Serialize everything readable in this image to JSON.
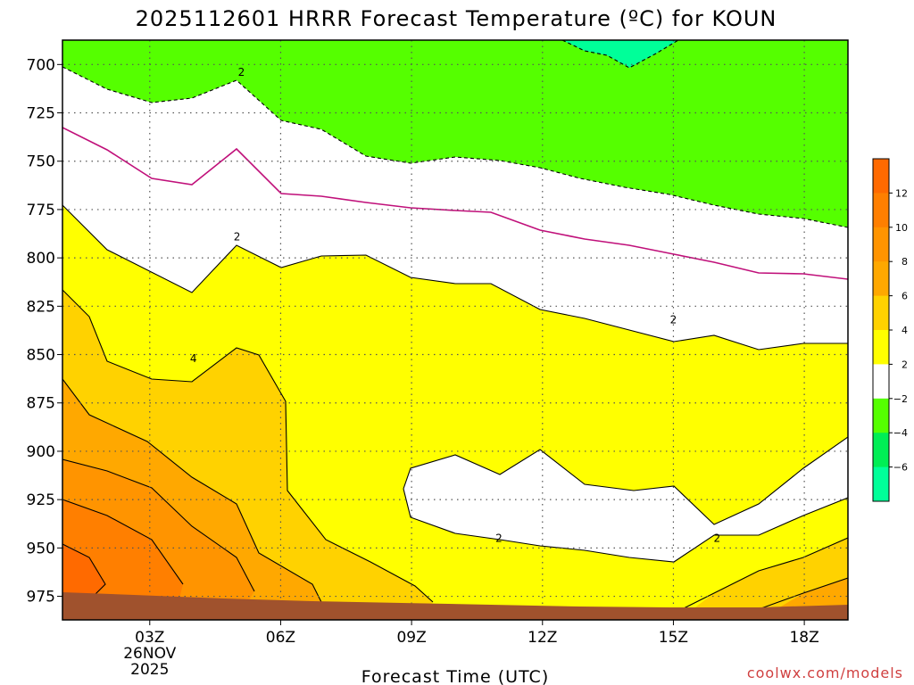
{
  "chart_data": {
    "type": "heatmap",
    "title": "2025112601 HRRR Forecast Temperature (ºC) for KOUN",
    "xlabel": "Forecast Time (UTC)",
    "ylabel": "",
    "y_axis": {
      "units": "hPa",
      "ticks": [
        700,
        725,
        750,
        775,
        800,
        825,
        850,
        875,
        900,
        925,
        950,
        975
      ],
      "ylim": [
        987,
        687
      ],
      "inverted": true
    },
    "x_axis": {
      "units": "hours UTC",
      "xlim": [
        1,
        19
      ],
      "ticks": [
        {
          "x": 3,
          "label": "03Z",
          "sublabel": [
            "26NOV",
            "2025"
          ]
        },
        {
          "x": 6,
          "label": "06Z"
        },
        {
          "x": 9,
          "label": "09Z"
        },
        {
          "x": 12,
          "label": "12Z"
        },
        {
          "x": 15,
          "label": "15Z"
        },
        {
          "x": 18,
          "label": "18Z"
        }
      ]
    },
    "grid": true,
    "colorbar": {
      "placement": "right",
      "tick_labels": [
        "12",
        "10",
        "8",
        "6",
        "4",
        "2",
        "−2",
        "−4",
        "−6"
      ],
      "bins": [
        {
          "range": [
            12,
            14
          ],
          "color": "#ff6a00"
        },
        {
          "range": [
            10,
            12
          ],
          "color": "#ff7f00"
        },
        {
          "range": [
            8,
            10
          ],
          "color": "#ff9400"
        },
        {
          "range": [
            6,
            8
          ],
          "color": "#ffa800"
        },
        {
          "range": [
            4,
            6
          ],
          "color": "#ffd200"
        },
        {
          "range": [
            2,
            4
          ],
          "color": "#ffff00"
        },
        {
          "range": [
            -2,
            2
          ],
          "color": "#ffffff"
        },
        {
          "range": [
            -4,
            -2
          ],
          "color": "#55ff00"
        },
        {
          "range": [
            -6,
            -4
          ],
          "color": "#00ee55"
        },
        {
          "range": [
            -8,
            -6
          ],
          "color": "#00ff99"
        }
      ]
    },
    "contour_labels": [
      {
        "text": "2",
        "x": 5.1,
        "p": 704
      },
      {
        "text": "2",
        "x": 5.0,
        "p": 789
      },
      {
        "text": "4",
        "x": 4.0,
        "p": 852
      },
      {
        "text": "2",
        "x": 15.0,
        "p": 832
      },
      {
        "text": "2",
        "x": 11.0,
        "p": 945
      },
      {
        "text": "2",
        "x": 16.0,
        "p": 945
      }
    ],
    "credit": "coolwx.com/models"
  }
}
